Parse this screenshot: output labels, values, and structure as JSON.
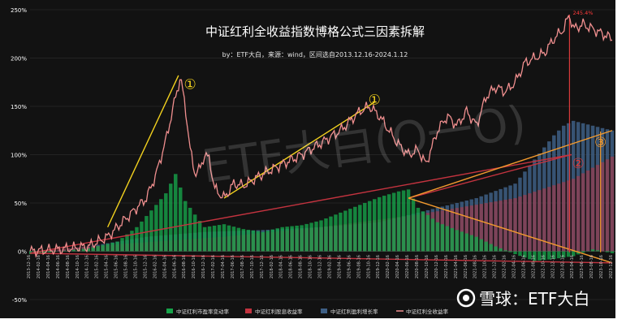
{
  "chart_data": {
    "type": "area",
    "title": "中证红利全收益指数博格公式三因素拆解",
    "subtitle": "by：ETF大白，来源：wind，区间选自2013.12.16-2024.1.12",
    "watermark": "ETF大白(Ο一Ο)",
    "logo_text": "雪球：ETF大白",
    "peak_label": "245.4%",
    "y_ticks": [
      "250%",
      "200%",
      "150%",
      "100%",
      "50%",
      "0%",
      "-50%"
    ],
    "ylim": [
      -50,
      250
    ],
    "x_ticks": [
      "2013-12-16",
      "2014-02-16",
      "2014-04-16",
      "2014-06-16",
      "2014-08-16",
      "2014-10-16",
      "2014-12-16",
      "2015-02-16",
      "2015-04-16",
      "2015-06-16",
      "2015-08-16",
      "2015-10-16",
      "2015-12-16",
      "2016-02-16",
      "2016-04-16",
      "2016-06-16",
      "2016-08-16",
      "2016-10-16",
      "2016-12-16",
      "2017-02-16",
      "2017-04-16",
      "2017-06-16",
      "2017-08-16",
      "2017-10-16",
      "2017-12-16",
      "2018-02-16",
      "2018-04-16",
      "2018-06-16",
      "2018-08-16",
      "2018-10-16",
      "2018-12-16",
      "2019-02-16",
      "2019-04-16",
      "2019-06-16",
      "2019-08-16",
      "2019-10-16",
      "2019-12-16",
      "2020-02-16",
      "2020-04-16",
      "2020-06-16",
      "2020-08-16",
      "2020-10-16",
      "2020-12-16",
      "2021-02-16",
      "2021-04-16",
      "2021-06-16",
      "2021-08-16",
      "2021-10-16",
      "2021-12-16",
      "2022-02-16",
      "2022-04-16",
      "2022-06-16",
      "2022-08-16",
      "2022-10-16",
      "2022-12-16",
      "2023-02-16",
      "2023-04-16",
      "2023-06-16",
      "2023-08-16",
      "2023-10-16",
      "2023-12-16"
    ],
    "series": [
      {
        "name": "中证红利市盈率变动率",
        "color": "#17a34a",
        "points": [
          [
            0,
            -3
          ],
          [
            3,
            0
          ],
          [
            6,
            3
          ],
          [
            9,
            10
          ],
          [
            11,
            25
          ],
          [
            13,
            48
          ],
          [
            14,
            60
          ],
          [
            15,
            80
          ],
          [
            16,
            52
          ],
          [
            17,
            38
          ],
          [
            18,
            25
          ],
          [
            20,
            28
          ],
          [
            22,
            23
          ],
          [
            24,
            20
          ],
          [
            26,
            25
          ],
          [
            28,
            27
          ],
          [
            30,
            32
          ],
          [
            32,
            40
          ],
          [
            34,
            48
          ],
          [
            36,
            56
          ],
          [
            38,
            62
          ],
          [
            39,
            64
          ],
          [
            40,
            45
          ],
          [
            42,
            30
          ],
          [
            44,
            22
          ],
          [
            46,
            15
          ],
          [
            48,
            5
          ],
          [
            50,
            -3
          ],
          [
            52,
            -10
          ],
          [
            54,
            -8
          ],
          [
            56,
            -5
          ],
          [
            58,
            2
          ],
          [
            60,
            -2
          ]
        ]
      },
      {
        "name": "中证红利股息收益率",
        "color": "#c3333f",
        "points": [
          [
            0,
            0
          ],
          [
            10,
            8
          ],
          [
            20,
            15
          ],
          [
            30,
            25
          ],
          [
            40,
            38
          ],
          [
            50,
            55
          ],
          [
            56,
            75
          ],
          [
            60,
            98
          ]
        ]
      },
      {
        "name": "中证红利盈利增长率",
        "color": "#3e5f85",
        "points": [
          [
            0,
            -2
          ],
          [
            6,
            5
          ],
          [
            12,
            15
          ],
          [
            18,
            20
          ],
          [
            24,
            22
          ],
          [
            30,
            25
          ],
          [
            36,
            30
          ],
          [
            42,
            45
          ],
          [
            46,
            55
          ],
          [
            50,
            70
          ],
          [
            52,
            95
          ],
          [
            54,
            120
          ],
          [
            55,
            130
          ],
          [
            56,
            135
          ],
          [
            58,
            130
          ],
          [
            60,
            125
          ]
        ]
      },
      {
        "name": "中证红利全收益率",
        "color": "#f08f8f",
        "points": [
          [
            0,
            0
          ],
          [
            3,
            2
          ],
          [
            6,
            5
          ],
          [
            8,
            15
          ],
          [
            10,
            35
          ],
          [
            12,
            55
          ],
          [
            13,
            80
          ],
          [
            14,
            115
          ],
          [
            15,
            160
          ],
          [
            15.5,
            180
          ],
          [
            16,
            150
          ],
          [
            16.5,
            105
          ],
          [
            17,
            80
          ],
          [
            17.5,
            85
          ],
          [
            18,
            100
          ],
          [
            18.5,
            95
          ],
          [
            19,
            65
          ],
          [
            20,
            55
          ],
          [
            21,
            70
          ],
          [
            22,
            68
          ],
          [
            24,
            80
          ],
          [
            26,
            90
          ],
          [
            28,
            100
          ],
          [
            30,
            112
          ],
          [
            32,
            125
          ],
          [
            34,
            145
          ],
          [
            35,
            150
          ],
          [
            36,
            140
          ],
          [
            37,
            125
          ],
          [
            38,
            110
          ],
          [
            39,
            100
          ],
          [
            40,
            105
          ],
          [
            40.8,
            90
          ],
          [
            41.5,
            110
          ],
          [
            42,
            125
          ],
          [
            43,
            140
          ],
          [
            44,
            130
          ],
          [
            45,
            145
          ],
          [
            46,
            130
          ],
          [
            47,
            160
          ],
          [
            48,
            170
          ],
          [
            49,
            165
          ],
          [
            50,
            175
          ],
          [
            51,
            195
          ],
          [
            52,
            200
          ],
          [
            53,
            205
          ],
          [
            54,
            220
          ],
          [
            55,
            230
          ],
          [
            55.6,
            245
          ],
          [
            56,
            230
          ],
          [
            57,
            235
          ],
          [
            58,
            230
          ],
          [
            59,
            225
          ],
          [
            60,
            220
          ]
        ]
      }
    ],
    "annotations": [
      {
        "text": "①",
        "x": 16.5,
        "y": 168,
        "color": "#f2d11e"
      },
      {
        "text": "①",
        "x": 35.5,
        "y": 152,
        "color": "#f2d11e"
      },
      {
        "text": "②",
        "x": 56.5,
        "y": 86,
        "color": "#d93a3a"
      },
      {
        "text": "③",
        "x": 58.8,
        "y": 108,
        "color": "#f29a2e"
      }
    ],
    "legend_position": "bottom"
  }
}
